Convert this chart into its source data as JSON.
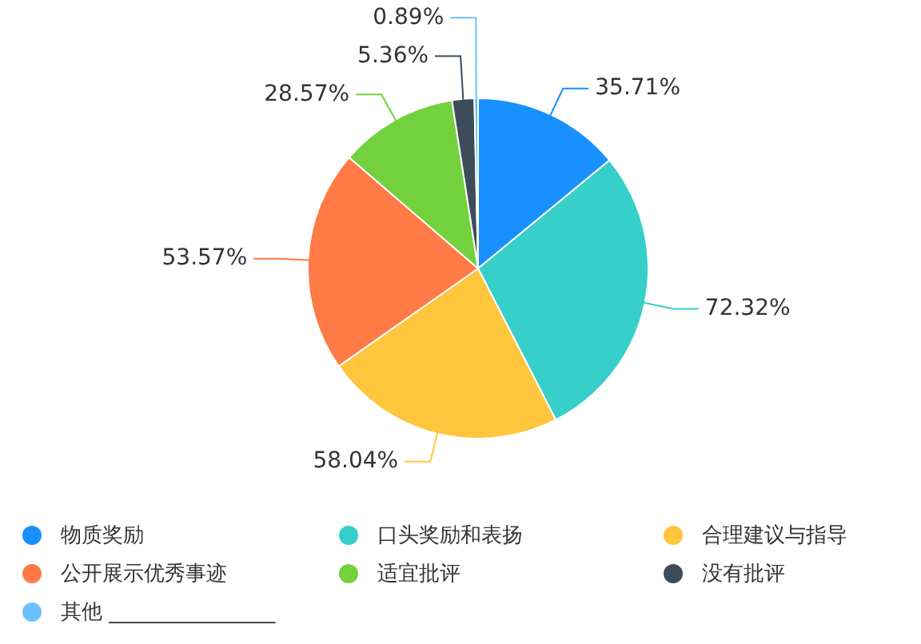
{
  "chart_data": {
    "type": "pie",
    "categories": [
      "物质奖励",
      "口头奖励和表扬",
      "合理建议与指导",
      "公开展示优秀事迹",
      "适宜批评",
      "没有批评",
      "其他 ________________"
    ],
    "values": [
      35.71,
      72.32,
      58.04,
      53.57,
      28.57,
      5.36,
      0.89
    ],
    "colors": [
      "#1890ff",
      "#36cfc9",
      "#ffc53d",
      "#ff7a45",
      "#73d13d",
      "#3e4c59",
      "#69c0ff"
    ],
    "value_labels": [
      "35.71%",
      "72.32%",
      "58.04%",
      "53.57%",
      "28.57%",
      "5.36%",
      "0.89%"
    ],
    "legend": "bottom"
  }
}
